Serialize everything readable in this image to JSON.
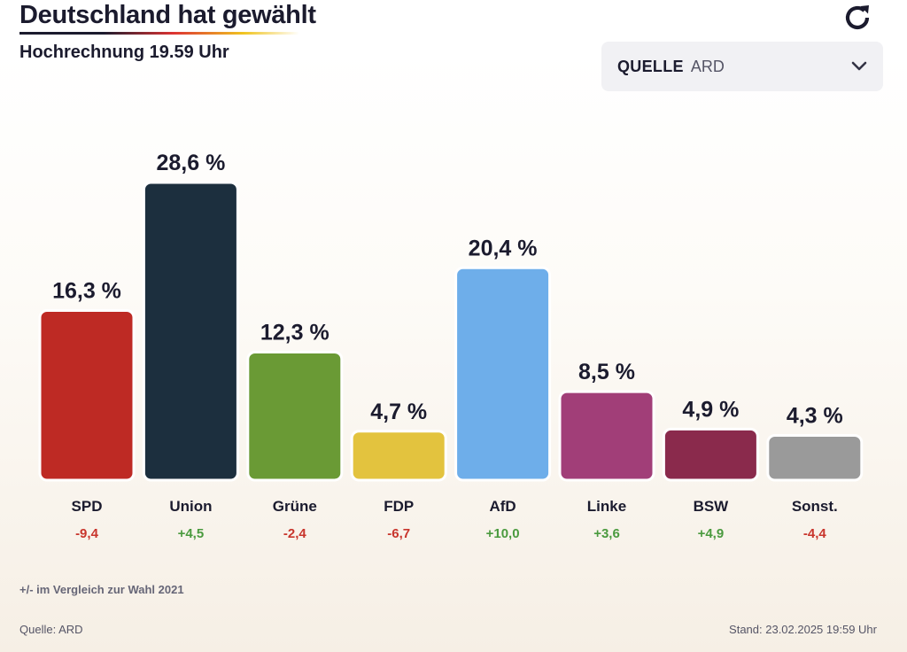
{
  "header": {
    "title": "Deutschland hat gewählt",
    "subtitle": "Hochrechnung 19.59 Uhr"
  },
  "source_select": {
    "label": "QUELLE",
    "value": "ARD"
  },
  "icons": {
    "refresh": "refresh-icon",
    "dropdown": "chevron-down-icon"
  },
  "chart_data": {
    "type": "bar",
    "categories": [
      "SPD",
      "Union",
      "Grüne",
      "FDP",
      "AfD",
      "Linke",
      "BSW",
      "Sonst."
    ],
    "values": [
      16.3,
      28.6,
      12.3,
      4.7,
      20.4,
      8.5,
      4.9,
      4.3
    ],
    "value_labels": [
      "16,3 %",
      "28,6 %",
      "12,3 %",
      "4,7 %",
      "20,4 %",
      "8,5 %",
      "4,9 %",
      "4,3 %"
    ],
    "changes": [
      -9.4,
      4.5,
      -2.4,
      -6.7,
      10.0,
      3.6,
      4.9,
      -4.4
    ],
    "change_labels": [
      "-9,4",
      "+4,5",
      "-2,4",
      "-6,7",
      "+10,0",
      "+3,6",
      "+4,9",
      "-4,4"
    ],
    "colors": [
      "#be2a24",
      "#1c2f3e",
      "#6a9a35",
      "#e3c33e",
      "#6eaeea",
      "#a13e78",
      "#8a2a4c",
      "#9a9a9a"
    ],
    "change_colors": {
      "positive": "#4a9a3e",
      "negative": "#c8352c"
    },
    "grid": false,
    "legend": "none"
  },
  "footer": {
    "note": "+/- im Vergleich zur Wahl 2021",
    "source": "Quelle: ARD",
    "timestamp": "Stand: 23.02.2025 19:59 Uhr"
  }
}
